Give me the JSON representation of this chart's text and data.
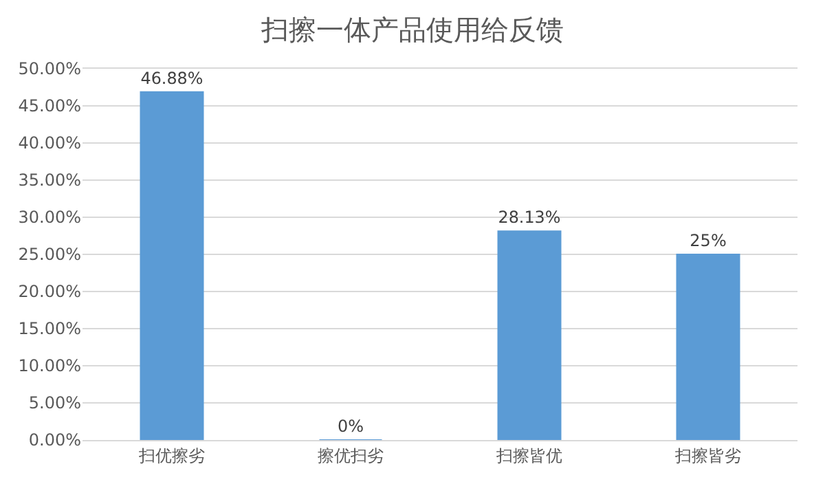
{
  "chart_data": {
    "type": "bar",
    "title": "扫擦一体产品使用给反馈",
    "categories": [
      "扫优擦劣",
      "擦优扫劣",
      "扫擦皆优",
      "扫擦皆劣"
    ],
    "values": [
      46.88,
      0,
      28.13,
      25
    ],
    "value_labels": [
      "46.88%",
      "0%",
      "28.13%",
      "25%"
    ],
    "color": "#5b9bd5",
    "ylim": [
      0,
      50
    ],
    "yticks": [
      {
        "value": 0,
        "label": "0.00%"
      },
      {
        "value": 5,
        "label": "5.00%"
      },
      {
        "value": 10,
        "label": "10.00%"
      },
      {
        "value": 15,
        "label": "15.00%"
      },
      {
        "value": 20,
        "label": "20.00%"
      },
      {
        "value": 25,
        "label": "25.00%"
      },
      {
        "value": 30,
        "label": "30.00%"
      },
      {
        "value": 35,
        "label": "35.00%"
      },
      {
        "value": 40,
        "label": "40.00%"
      },
      {
        "value": 45,
        "label": "45.00%"
      },
      {
        "value": 50,
        "label": "50.00%"
      }
    ],
    "grid": "y",
    "legend": false
  }
}
